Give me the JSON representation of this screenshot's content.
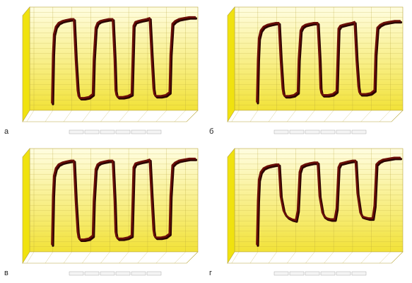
{
  "panel_labels": [
    "а",
    "б",
    "в",
    "г"
  ],
  "colors": {
    "wall_top": "#fffde0",
    "wall_bottom": "#f2e238",
    "left_wall": "#f0e20f",
    "line": "#6a0e08",
    "line_dark": "#2a0402",
    "floor": "#ffffff",
    "grid": "#b8a63a"
  },
  "chart_data": [
    {
      "type": "line",
      "panel": "а",
      "title": "",
      "xlabel": "",
      "ylabel": "",
      "legend": "bottom",
      "grid": true,
      "xlim": [
        0,
        8.5
      ],
      "ylim": [
        0,
        1
      ],
      "x_ticks": [
        0,
        1,
        2,
        3,
        4,
        5,
        6,
        7,
        8
      ],
      "series": [
        {
          "x": [
            0.95,
            1.0,
            1.05,
            1.15,
            1.3,
            1.5,
            1.7,
            1.95,
            2.1,
            2.2,
            2.3,
            2.35,
            2.45,
            2.65,
            2.9,
            3.1,
            3.15,
            3.25,
            3.35,
            3.5,
            3.7,
            3.95,
            4.15,
            4.25,
            4.3,
            4.35,
            4.45,
            4.7,
            4.95,
            5.15,
            5.2,
            5.25,
            5.35,
            5.5,
            5.7,
            5.95,
            6.1,
            6.2,
            6.3,
            6.35,
            6.45,
            6.7,
            6.95,
            7.15,
            7.2,
            7.3,
            7.45,
            7.65,
            7.9,
            8.2,
            8.5
          ],
          "y": [
            0.05,
            0.55,
            0.76,
            0.84,
            0.88,
            0.9,
            0.91,
            0.92,
            0.92,
            0.5,
            0.18,
            0.12,
            0.1,
            0.1,
            0.11,
            0.14,
            0.5,
            0.83,
            0.88,
            0.9,
            0.91,
            0.92,
            0.92,
            0.5,
            0.18,
            0.13,
            0.11,
            0.11,
            0.12,
            0.14,
            0.5,
            0.85,
            0.89,
            0.9,
            0.91,
            0.92,
            0.93,
            0.55,
            0.2,
            0.14,
            0.12,
            0.12,
            0.13,
            0.16,
            0.55,
            0.87,
            0.9,
            0.92,
            0.93,
            0.94,
            0.94
          ]
        }
      ]
    },
    {
      "type": "line",
      "panel": "б",
      "title": "",
      "xlabel": "",
      "ylabel": "",
      "legend": "bottom",
      "grid": true,
      "xlim": [
        0,
        8.5
      ],
      "ylim": [
        0,
        1
      ],
      "x_ticks": [
        0,
        1,
        2,
        3,
        4,
        5,
        6,
        7,
        8
      ],
      "series": [
        {
          "x": [
            0.95,
            1.0,
            1.05,
            1.15,
            1.3,
            1.5,
            1.7,
            1.95,
            2.1,
            2.2,
            2.3,
            2.35,
            2.45,
            2.65,
            2.9,
            3.1,
            3.15,
            3.25,
            3.35,
            3.5,
            3.7,
            3.95,
            4.15,
            4.25,
            4.3,
            4.35,
            4.45,
            4.7,
            4.95,
            5.15,
            5.2,
            5.25,
            5.35,
            5.5,
            5.7,
            5.95,
            6.1,
            6.2,
            6.3,
            6.35,
            6.45,
            6.7,
            6.95,
            7.15,
            7.2,
            7.3,
            7.45,
            7.65,
            7.9,
            8.2,
            8.5
          ],
          "y": [
            0.06,
            0.5,
            0.72,
            0.8,
            0.84,
            0.86,
            0.87,
            0.88,
            0.88,
            0.5,
            0.2,
            0.14,
            0.12,
            0.12,
            0.13,
            0.16,
            0.5,
            0.8,
            0.84,
            0.86,
            0.87,
            0.88,
            0.88,
            0.5,
            0.2,
            0.15,
            0.13,
            0.13,
            0.14,
            0.17,
            0.5,
            0.82,
            0.85,
            0.86,
            0.87,
            0.88,
            0.89,
            0.5,
            0.22,
            0.16,
            0.14,
            0.14,
            0.15,
            0.18,
            0.55,
            0.83,
            0.86,
            0.88,
            0.89,
            0.9,
            0.9
          ]
        }
      ]
    },
    {
      "type": "line",
      "panel": "в",
      "title": "",
      "xlabel": "",
      "ylabel": "",
      "legend": "bottom",
      "grid": true,
      "xlim": [
        0,
        8.5
      ],
      "ylim": [
        0,
        1
      ],
      "x_ticks": [
        0,
        1,
        2,
        3,
        4,
        5,
        6,
        7,
        8
      ],
      "series": [
        {
          "x": [
            0.95,
            1.0,
            1.05,
            1.15,
            1.3,
            1.5,
            1.7,
            1.95,
            2.1,
            2.2,
            2.3,
            2.35,
            2.45,
            2.65,
            2.9,
            3.1,
            3.15,
            3.25,
            3.35,
            3.5,
            3.7,
            3.95,
            4.15,
            4.25,
            4.3,
            4.35,
            4.45,
            4.7,
            4.95,
            5.15,
            5.2,
            5.25,
            5.35,
            5.5,
            5.7,
            5.95,
            6.1,
            6.2,
            6.3,
            6.35,
            6.45,
            6.7,
            6.95,
            7.15,
            7.2,
            7.3,
            7.45,
            7.65,
            7.9,
            8.2,
            8.5
          ],
          "y": [
            0.05,
            0.55,
            0.76,
            0.84,
            0.88,
            0.9,
            0.91,
            0.92,
            0.92,
            0.5,
            0.18,
            0.12,
            0.1,
            0.1,
            0.11,
            0.14,
            0.5,
            0.83,
            0.88,
            0.9,
            0.91,
            0.92,
            0.92,
            0.5,
            0.18,
            0.13,
            0.11,
            0.11,
            0.12,
            0.14,
            0.5,
            0.85,
            0.89,
            0.9,
            0.91,
            0.92,
            0.93,
            0.55,
            0.2,
            0.14,
            0.12,
            0.12,
            0.13,
            0.16,
            0.55,
            0.87,
            0.9,
            0.92,
            0.93,
            0.94,
            0.94
          ]
        }
      ]
    },
    {
      "type": "line",
      "panel": "г",
      "title": "",
      "xlabel": "",
      "ylabel": "",
      "legend": "bottom",
      "grid": true,
      "xlim": [
        0,
        8.5
      ],
      "ylim": [
        0,
        1
      ],
      "x_ticks": [
        0,
        1,
        2,
        3,
        4,
        5,
        6,
        7,
        8
      ],
      "series": [
        {
          "x": [
            0.95,
            1.0,
            1.05,
            1.15,
            1.3,
            1.5,
            1.7,
            1.95,
            2.1,
            2.2,
            2.35,
            2.45,
            2.6,
            2.8,
            3.0,
            3.1,
            3.2,
            3.3,
            3.5,
            3.7,
            3.95,
            4.15,
            4.25,
            4.4,
            4.5,
            4.65,
            4.85,
            5.05,
            5.15,
            5.25,
            5.35,
            5.55,
            5.75,
            6.0,
            6.15,
            6.25,
            6.4,
            6.5,
            6.65,
            6.85,
            7.05,
            7.15,
            7.25,
            7.4,
            7.6,
            7.9,
            8.2,
            8.5
          ],
          "y": [
            0.05,
            0.5,
            0.72,
            0.8,
            0.84,
            0.86,
            0.87,
            0.88,
            0.88,
            0.55,
            0.4,
            0.36,
            0.33,
            0.31,
            0.3,
            0.4,
            0.8,
            0.86,
            0.88,
            0.89,
            0.9,
            0.9,
            0.55,
            0.38,
            0.34,
            0.32,
            0.31,
            0.31,
            0.42,
            0.85,
            0.89,
            0.9,
            0.91,
            0.92,
            0.92,
            0.58,
            0.38,
            0.34,
            0.33,
            0.32,
            0.32,
            0.45,
            0.88,
            0.91,
            0.93,
            0.94,
            0.95,
            0.95
          ]
        }
      ]
    }
  ]
}
